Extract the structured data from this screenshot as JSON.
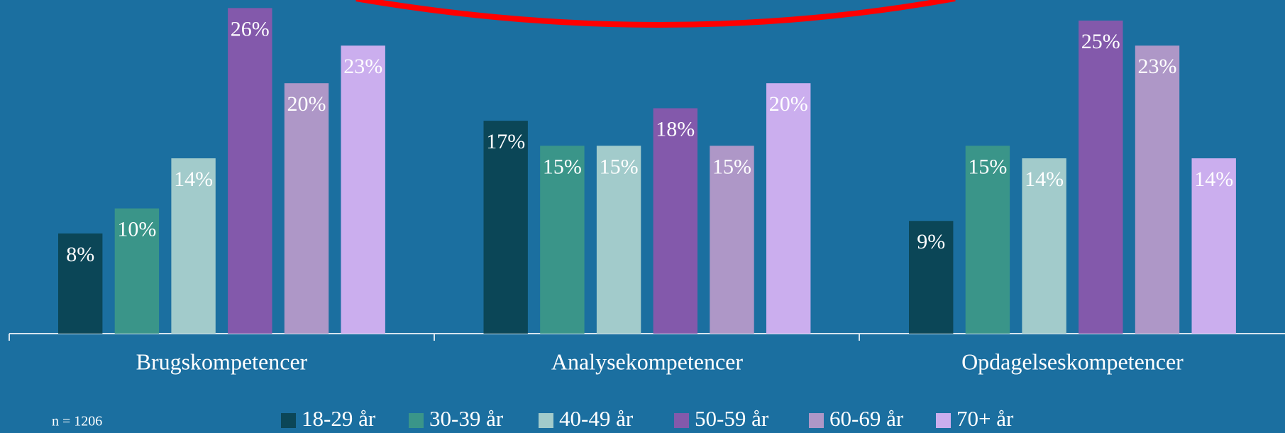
{
  "chart_data": {
    "type": "bar",
    "categories": [
      "Brugskompetencer",
      "Analysekompetencer",
      "Opdagelseskompetencer"
    ],
    "series": [
      {
        "name": "18-29 år",
        "color": "#0b4657",
        "values": [
          8,
          17,
          9
        ],
        "value_labels": [
          "8%",
          "17%",
          "9%"
        ]
      },
      {
        "name": "30-39 år",
        "color": "#3a9589",
        "values": [
          10,
          15,
          15
        ],
        "value_labels": [
          "10%",
          "15%",
          "15%"
        ]
      },
      {
        "name": "40-49 år",
        "color": "#a2cbcb",
        "values": [
          14,
          15,
          14
        ],
        "value_labels": [
          "14%",
          "15%",
          "14%"
        ]
      },
      {
        "name": "50-59 år",
        "color": "#8359ab",
        "values": [
          26,
          18,
          25
        ],
        "value_labels": [
          "26%",
          "18%",
          "25%"
        ]
      },
      {
        "name": "60-69 år",
        "color": "#ae97c7",
        "values": [
          20,
          15,
          23
        ],
        "value_labels": [
          "20%",
          "15%",
          "23%"
        ]
      },
      {
        "name": "70+ år",
        "color": "#cbaeee",
        "values": [
          23,
          20,
          14
        ],
        "value_labels": [
          "23%",
          "20%",
          "14%"
        ]
      }
    ],
    "annotation": "n = 1206",
    "legend": "bottom"
  }
}
